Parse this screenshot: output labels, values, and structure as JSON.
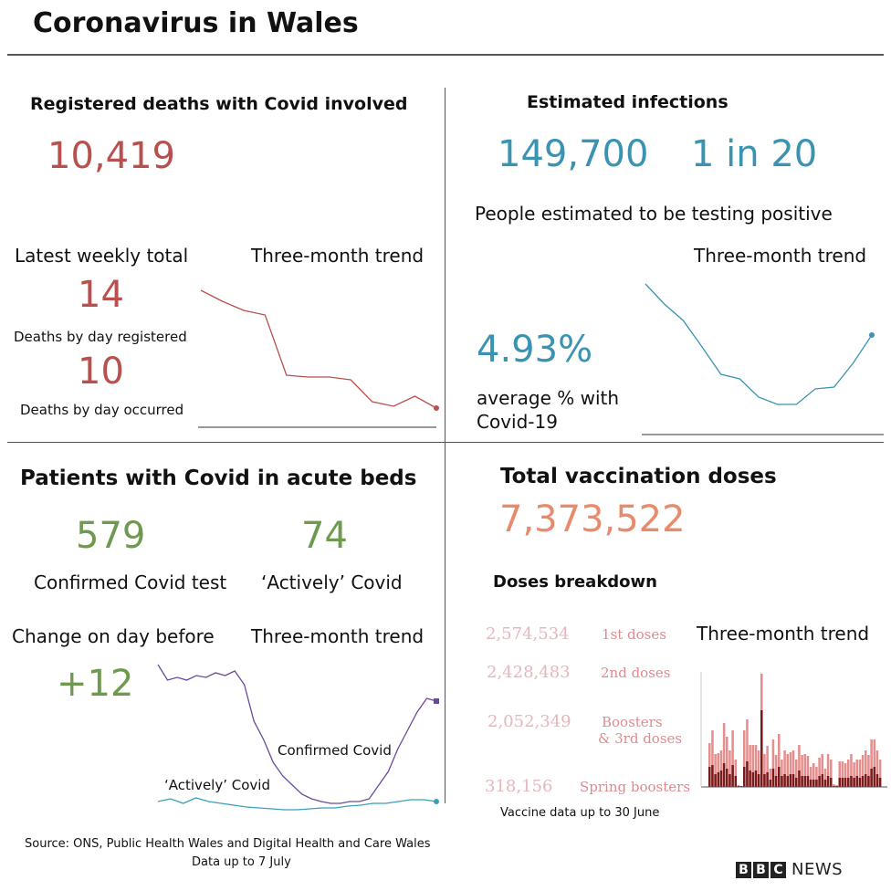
{
  "title": "Coronavirus in Wales",
  "colors": {
    "deaths": "#b8504e",
    "infections": "#3a93b0",
    "beds": "#6e9a4f",
    "vaccination": "#e88a6c",
    "doses": "#e6b6ba",
    "doses_label": "#e08a8e",
    "confirmed_line": "#6a4a9c",
    "actively_line": "#3aa0b8"
  },
  "deaths": {
    "heading": "Registered deaths with Covid involved",
    "total": "10,419",
    "weekly_label": "Latest weekly total",
    "trend_label": "Three-month trend",
    "registered_value": "14",
    "registered_label": "Deaths by day registered",
    "occurred_value": "10",
    "occurred_label": "Deaths by day occurred"
  },
  "infections": {
    "heading": "Estimated infections",
    "count": "149,700",
    "ratio": "1 in 20",
    "subtitle": "People estimated to be testing positive",
    "trend_label": "Three-month trend",
    "percent": "4.93%",
    "percent_label_1": "average % with",
    "percent_label_2": "Covid-19"
  },
  "beds": {
    "heading": "Patients with Covid in acute beds",
    "confirmed_value": "579",
    "confirmed_label": "Confirmed Covid test",
    "active_value": "74",
    "active_label": "‘Actively’ Covid",
    "change_label": "Change on day before",
    "trend_label": "Three-month trend",
    "change_value": "+12",
    "confirmed_series_label": "Confirmed Covid",
    "active_series_label": "‘Actively’ Covid"
  },
  "vaccination": {
    "heading": "Total vaccination doses",
    "total": "7,373,522",
    "breakdown_heading": "Doses breakdown",
    "trend_label": "Three-month trend",
    "doses": [
      {
        "value": "2,574,534",
        "label": "1st doses"
      },
      {
        "value": "2,428,483",
        "label": "2nd doses"
      },
      {
        "value": "2,052,349",
        "label": "Boosters",
        "label2": "& 3rd doses"
      },
      {
        "value": "318,156",
        "label": "Spring boosters"
      }
    ],
    "note": "Vaccine data up to 30 June"
  },
  "footer": {
    "source": "Source: ONS, Public Health Wales and Digital Health and Care Wales",
    "date": "Data up to 7 July",
    "logo": "BBC NEWS"
  },
  "chart_data": [
    {
      "type": "line",
      "name": "deaths-trend",
      "values": [
        152,
        140,
        130,
        125,
        59,
        57,
        57,
        54,
        30,
        25,
        36,
        23
      ]
    },
    {
      "type": "line",
      "name": "infections-trend",
      "values": [
        159,
        137,
        119,
        90,
        60,
        55,
        35,
        27,
        27,
        44,
        46,
        72,
        103
      ]
    },
    {
      "type": "line",
      "name": "beds-trend",
      "series": [
        {
          "name": "Confirmed Covid",
          "values": [
            162,
            145,
            148,
            145,
            150,
            148,
            153,
            150,
            155,
            140,
            100,
            80,
            55,
            40,
            30,
            20,
            15,
            12,
            10,
            10,
            12,
            12,
            15,
            30,
            45,
            70,
            90,
            110,
            125,
            122
          ]
        },
        {
          "name": "‘Actively’ Covid",
          "values": [
            12,
            15,
            10,
            16,
            12,
            10,
            8,
            6,
            5,
            4,
            3,
            3,
            4,
            5,
            5,
            7,
            8,
            10,
            10,
            12,
            14,
            14,
            12
          ]
        }
      ]
    },
    {
      "type": "bar",
      "name": "vaccination-trend",
      "series": [
        {
          "name": "total",
          "values": [
            48,
            62,
            36,
            37,
            40,
            70,
            55,
            40,
            62,
            30,
            2,
            1,
            62,
            74,
            46,
            46,
            46,
            40,
            124,
            36,
            45,
            20,
            52,
            35,
            58,
            30,
            40,
            36,
            38,
            40,
            30,
            46,
            35,
            36,
            34,
            22,
            26,
            22,
            32,
            36,
            20,
            36,
            30,
            3,
            2,
            28,
            28,
            26,
            30,
            36,
            27,
            30,
            30,
            35,
            40,
            35,
            52,
            52,
            40,
            30
          ]
        },
        {
          "name": "portion",
          "values": [
            22,
            24,
            14,
            16,
            18,
            26,
            20,
            14,
            24,
            12,
            1,
            1,
            22,
            28,
            18,
            16,
            18,
            14,
            84,
            14,
            16,
            8,
            20,
            12,
            22,
            12,
            14,
            12,
            14,
            14,
            10,
            18,
            12,
            12,
            12,
            8,
            8,
            8,
            12,
            14,
            8,
            12,
            10,
            1,
            1,
            10,
            10,
            10,
            10,
            12,
            10,
            12,
            10,
            12,
            14,
            12,
            20,
            22,
            14,
            10
          ]
        }
      ]
    }
  ]
}
